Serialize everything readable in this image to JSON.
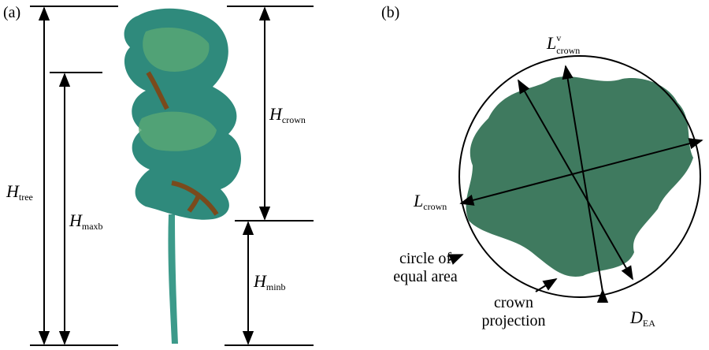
{
  "panels": [
    {
      "tag": "(a)",
      "labels": {
        "tree_height": {
          "main": "H",
          "sub": "tree"
        },
        "max_branch_height": {
          "main": "H",
          "sub": "maxb"
        },
        "crown_height": {
          "main": "H",
          "sub": "crown"
        },
        "min_branch_height": {
          "main": "H",
          "sub": "minb"
        }
      }
    },
    {
      "tag": "(b)",
      "labels": {
        "crown_length": {
          "main": "L",
          "sub": "crown"
        },
        "crown_length_v": {
          "main": "L",
          "sup": "v",
          "sub": "crown"
        },
        "equal_area_diameter": {
          "main": "D",
          "sub": "EA"
        },
        "circle": {
          "lines": [
            "circle of",
            "equal area"
          ]
        },
        "projection": {
          "lines": [
            "crown",
            "projection"
          ]
        }
      }
    }
  ]
}
